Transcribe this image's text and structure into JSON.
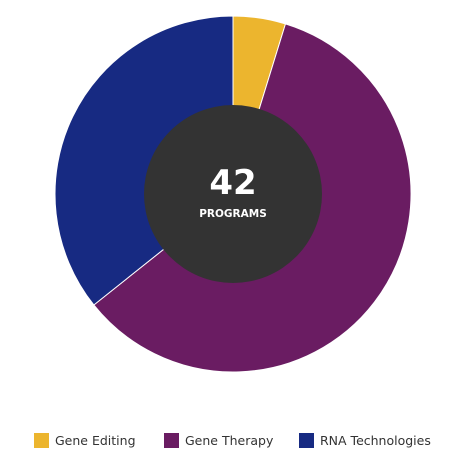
{
  "chart_data": {
    "type": "pie",
    "categories": [
      "Gene Editing",
      "Gene Therapy",
      "RNA Technologies"
    ],
    "values": [
      2,
      25,
      15
    ],
    "colors": [
      "#ecb52e",
      "#6a1c62",
      "#172a82"
    ],
    "center": {
      "count": "42",
      "label": "PROGRAMS",
      "color": "#333333"
    },
    "legend_position": "bottom"
  }
}
